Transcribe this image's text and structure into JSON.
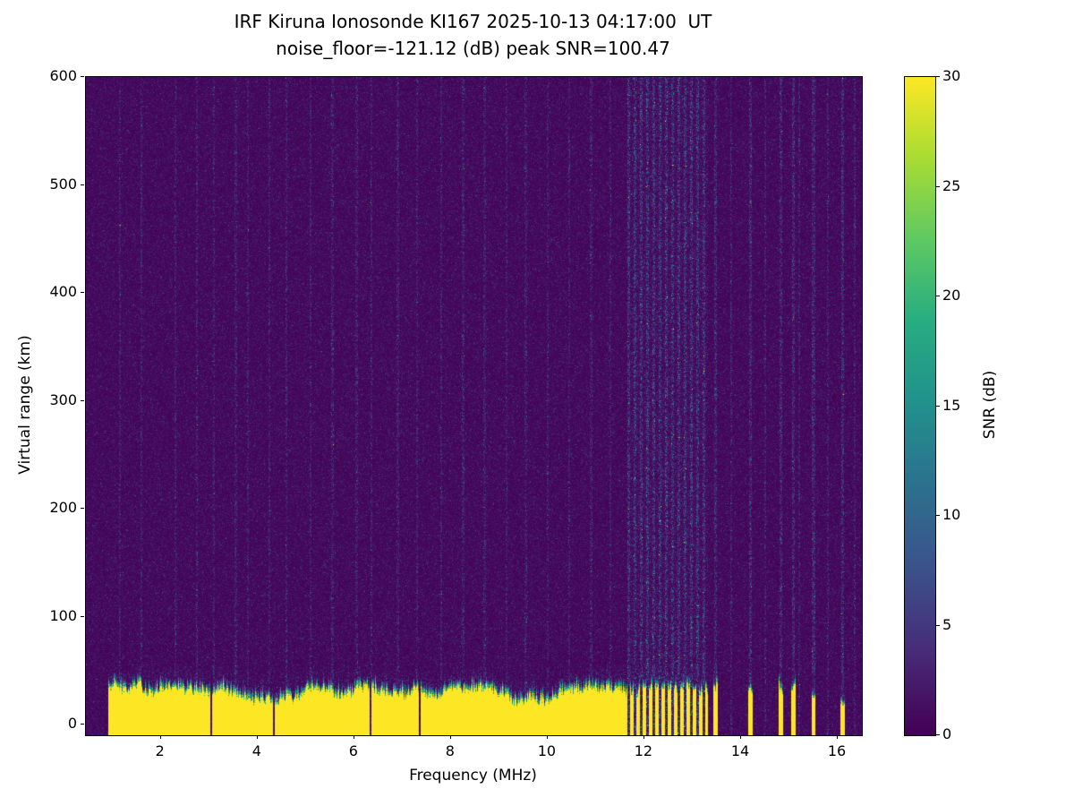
{
  "page": {
    "background": "#ffffff"
  },
  "chart_data": {
    "type": "heatmap",
    "title": "IRF Kiruna Ionosonde KI167 2025-10-13 04:17:00  UT",
    "subtitle": "noise_floor=-121.12 (dB) peak SNR=100.47",
    "station": "IRF Kiruna Ionosonde KI167",
    "timestamp_ut": "2025-10-13 04:17:00 UT",
    "noise_floor_db": -121.12,
    "peak_snr_db": 100.47,
    "xlabel": "Frequency (MHz)",
    "ylabel": "Virtual range (km)",
    "xlim": [
      0.45,
      16.5
    ],
    "ylim": [
      -10,
      600
    ],
    "x_ticks": [
      2,
      4,
      6,
      8,
      10,
      12,
      14,
      16
    ],
    "y_ticks": [
      0,
      100,
      200,
      300,
      400,
      500,
      600
    ],
    "grid": false,
    "colormap": "viridis",
    "colorbar": {
      "label": "SNR (dB)",
      "ticks": [
        0,
        5,
        10,
        15,
        20,
        25,
        30
      ],
      "lim": [
        0,
        30
      ],
      "position": "right"
    },
    "features": {
      "background_noise_mean_db": 1.0,
      "ground_echo_band": {
        "freq_start_mhz": 0.92,
        "freq_end_mhz": 16.5,
        "top_km_mean": 27,
        "top_km_jitter": 8,
        "snr_db": 30,
        "fringe_km": 8
      },
      "band_notches_mhz": [
        3.05,
        4.33,
        6.33,
        7.35
      ],
      "rfi_dense_region": {
        "from_mhz": 11.65,
        "to_mhz": 13.32,
        "period_mhz": 0.13,
        "gap_duty": 0.42,
        "stripe_strength": 4.0
      },
      "rfi_lines_mhz": [
        13.48,
        14.2,
        14.82,
        15.08,
        15.5,
        16.1
      ],
      "faint_stripes_mhz": [
        1.15,
        1.6,
        2.3,
        2.75,
        3.1,
        3.55,
        3.8,
        4.25,
        4.6,
        5.1,
        5.55,
        6.05,
        6.35,
        6.9,
        7.3,
        7.8,
        8.25,
        8.7,
        9.15,
        9.55,
        10.0,
        10.45,
        10.9,
        11.3,
        13.8,
        14.5,
        15.2,
        15.8,
        16.35
      ],
      "faint_stripe_strength": 2.4
    },
    "seed": 42
  }
}
